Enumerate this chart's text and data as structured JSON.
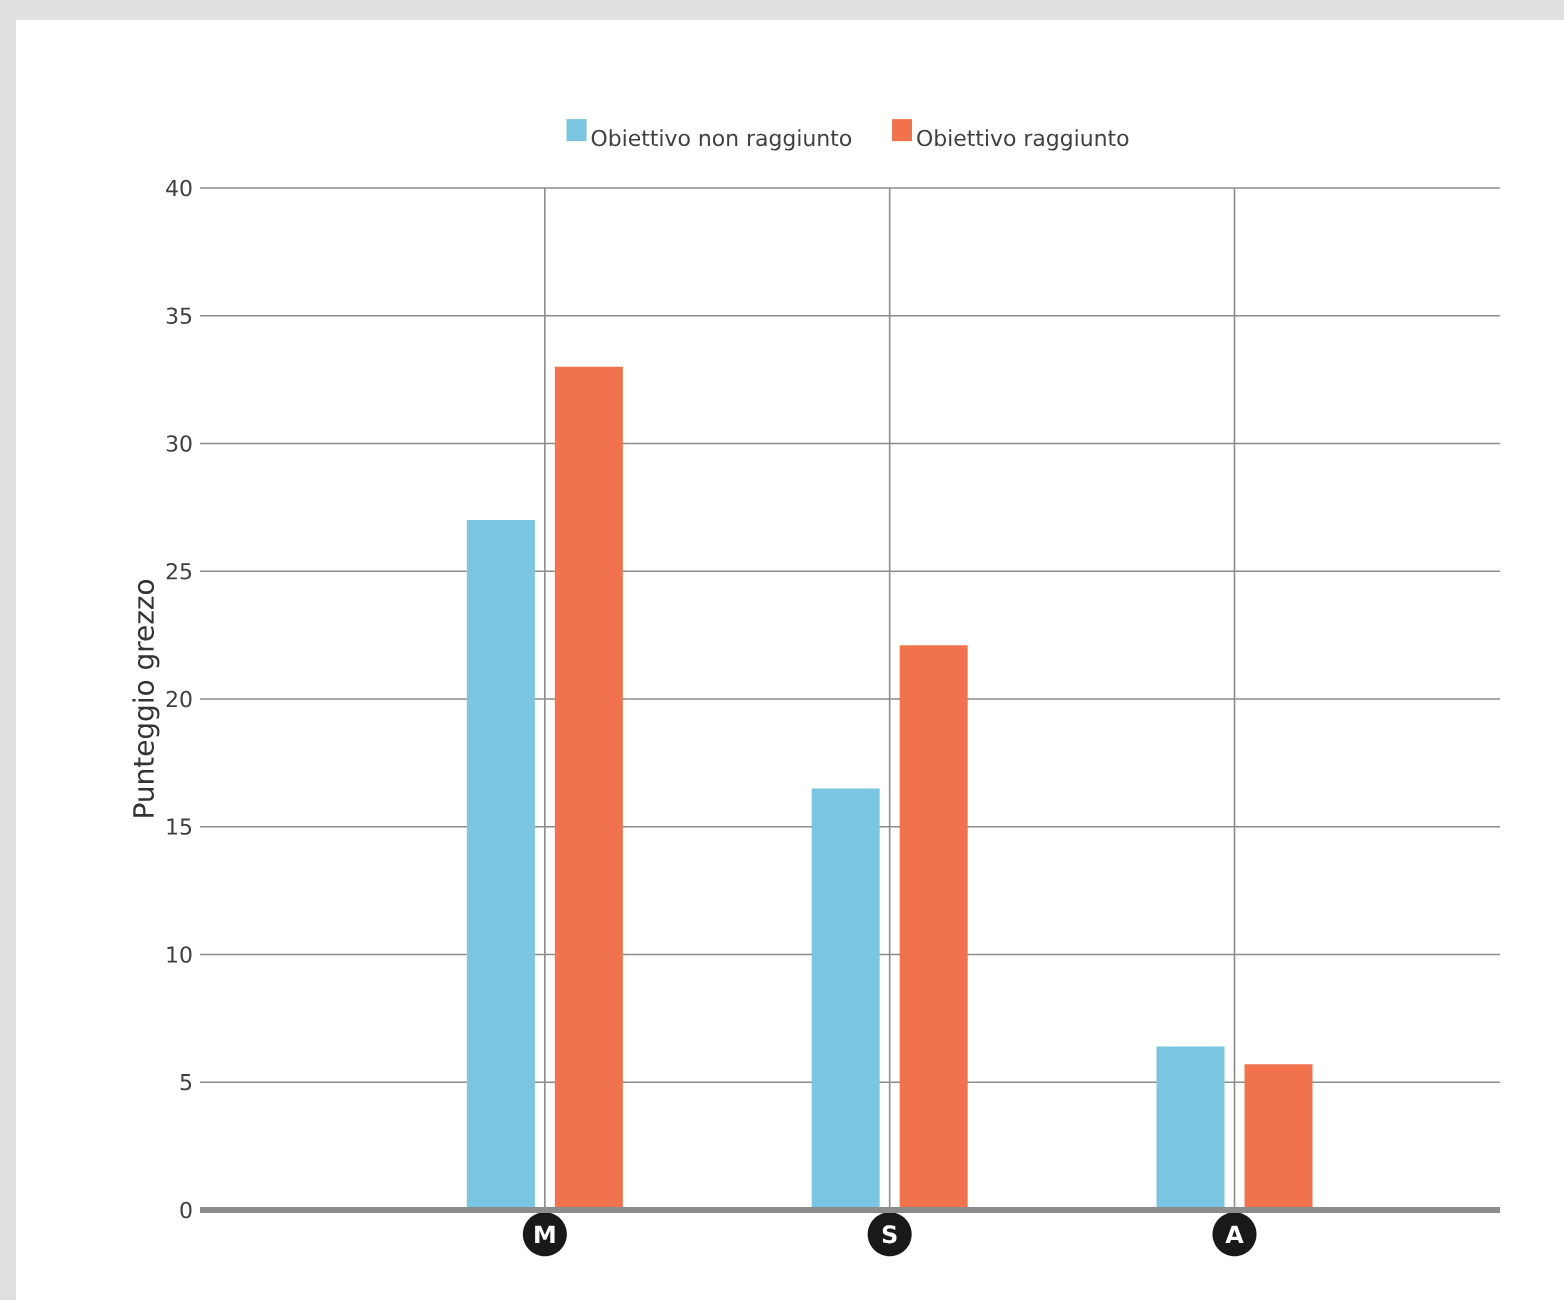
{
  "chart_data": {
    "type": "bar",
    "ylabel": "Punteggio grezzo",
    "categories": [
      "M",
      "S",
      "A"
    ],
    "series": [
      {
        "name": "Obiettivo non raggiunto",
        "color": "#7ac5e2",
        "values": [
          27,
          16.5,
          6.4
        ]
      },
      {
        "name": "Obiettivo raggiunto",
        "color": "#f0734d",
        "values": [
          33,
          22.1,
          5.7
        ]
      }
    ],
    "ylim": [
      0,
      40
    ],
    "yticks": [
      0,
      5,
      10,
      15,
      20,
      25,
      30,
      35,
      40
    ],
    "grid": true,
    "legend": "top"
  }
}
